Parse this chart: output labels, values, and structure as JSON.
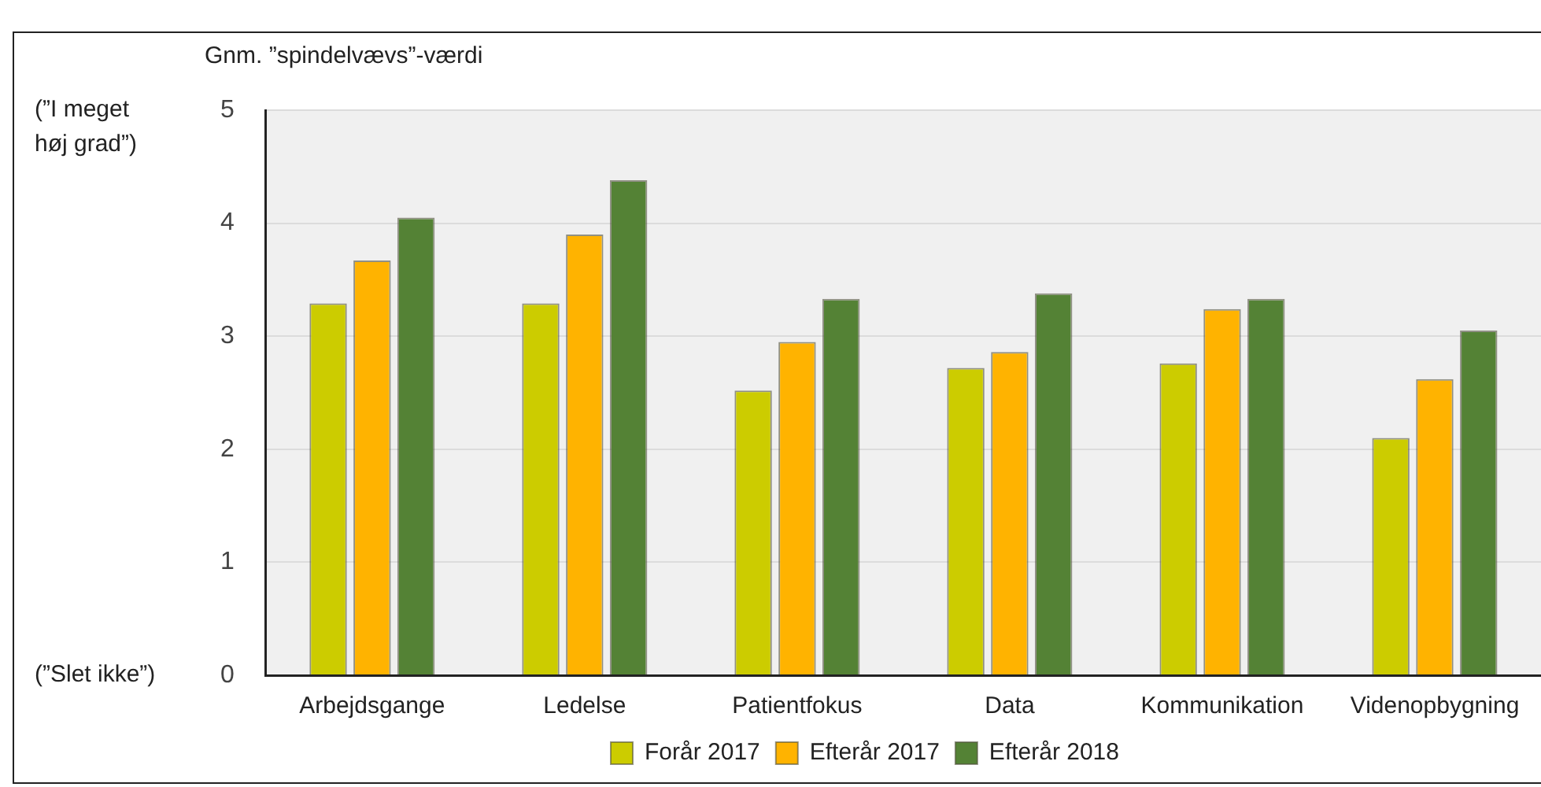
{
  "chart_data": {
    "type": "bar",
    "ylabel": "Gnm. ”spindelvævs”-værdi",
    "categories": [
      "Arbejdsgange",
      "Ledelse",
      "Patientfokus",
      "Data",
      "Kommunikation",
      "Videnopbygning"
    ],
    "series": [
      {
        "name": "Forår 2017",
        "color": "#cccc00",
        "values": [
          3.29,
          3.29,
          2.52,
          2.72,
          2.76,
          2.1
        ]
      },
      {
        "name": "Efterår 2017",
        "color": "#ffb300",
        "values": [
          3.67,
          3.9,
          2.95,
          2.86,
          3.24,
          2.62
        ]
      },
      {
        "name": "Efterår 2018",
        "color": "#548235",
        "values": [
          4.05,
          4.38,
          3.33,
          3.38,
          3.33,
          3.05
        ]
      }
    ],
    "ylim": [
      0,
      5
    ],
    "yticks": [
      0,
      1,
      2,
      3,
      4,
      5
    ],
    "grid": "y",
    "legend": "bottom",
    "annotations": [
      "(”I meget høj grad”)",
      "(”Slet ikke”)"
    ]
  }
}
